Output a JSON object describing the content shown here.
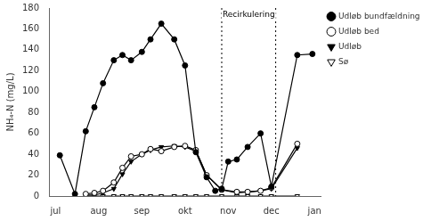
{
  "chart_data": {
    "type": "line",
    "ylabel": "NH₄-N (mg/L)",
    "xlim": [
      -0.15,
      6.15
    ],
    "xticks": [
      {
        "value": 0,
        "label": "jul"
      },
      {
        "value": 1,
        "label": "aug"
      },
      {
        "value": 2,
        "label": "sep"
      },
      {
        "value": 3,
        "label": "okt"
      },
      {
        "value": 4,
        "label": "nov"
      },
      {
        "value": 5,
        "label": "dec"
      },
      {
        "value": 6,
        "label": "jan"
      }
    ],
    "ylim": [
      0,
      180
    ],
    "yticks": [
      0,
      20,
      40,
      60,
      80,
      100,
      120,
      140,
      160,
      180
    ],
    "grid": false,
    "legend": "right",
    "vlines": [
      3.85,
      5.1
    ],
    "annotations": [
      {
        "text": "Recirkulering",
        "x": 4.475,
        "y": 178
      }
    ],
    "series": [
      {
        "name": "Udløb bundfældning",
        "color": "black",
        "marker": "filled_circle",
        "x": [
          0.1,
          0.45,
          0.7,
          0.9,
          1.1,
          1.35,
          1.55,
          1.75,
          2.0,
          2.2,
          2.45,
          2.75,
          3.0,
          3.25,
          3.5,
          3.7,
          3.85,
          4.0,
          4.2,
          4.45,
          4.75,
          5.0,
          5.6,
          5.95
        ],
        "values": [
          39,
          2,
          62,
          85,
          108,
          130,
          135,
          130,
          138,
          150,
          165,
          150,
          125,
          42,
          18,
          5,
          7,
          33,
          35,
          47,
          60,
          9,
          135,
          136
        ]
      },
      {
        "name": "Udløb bed",
        "color": "black",
        "marker": "open_circle",
        "x": [
          0.7,
          0.9,
          1.1,
          1.35,
          1.55,
          1.75,
          2.0,
          2.2,
          2.45,
          2.75,
          3.0,
          3.25,
          3.5,
          3.85,
          4.2,
          4.45,
          4.75,
          5.0,
          5.6
        ],
        "values": [
          2,
          3,
          5,
          13,
          27,
          38,
          40,
          45,
          43,
          47,
          48,
          44,
          20,
          6,
          4,
          4,
          5,
          8,
          50
        ]
      },
      {
        "name": "Udløb",
        "color": "black",
        "marker": "filled_triangle_down",
        "x": [
          0.7,
          0.9,
          1.1,
          1.35,
          1.55,
          1.75,
          2.0,
          2.2,
          2.45,
          2.75,
          3.0,
          3.25,
          3.5,
          3.85,
          4.2,
          4.45,
          4.75,
          5.0,
          5.6
        ],
        "values": [
          1,
          1,
          3,
          7,
          21,
          33,
          40,
          44,
          47,
          48,
          47,
          43,
          20,
          6,
          3,
          4,
          5,
          7,
          46
        ]
      },
      {
        "name": "Sø",
        "color": "black",
        "marker": "open_triangle_down",
        "x": [
          0.7,
          0.9,
          1.1,
          1.35,
          1.55,
          1.75,
          2.0,
          2.2,
          2.45,
          2.75,
          3.0,
          3.25,
          3.5,
          3.85,
          4.2,
          4.45,
          4.75,
          5.0,
          5.6
        ],
        "values": [
          0,
          0,
          0,
          0,
          0,
          0,
          0,
          0,
          0,
          0,
          0,
          0,
          0,
          0,
          0,
          0,
          0,
          0,
          0
        ]
      }
    ]
  }
}
